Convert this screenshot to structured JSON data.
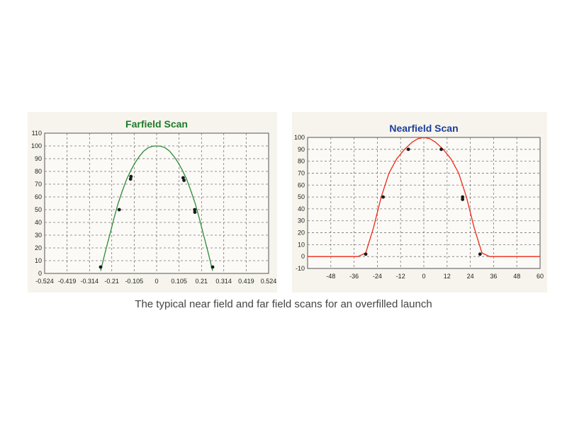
{
  "caption": "The typical near field and far field scans for an overfilled launch",
  "chart_data": [
    {
      "type": "line",
      "title": "Farfield Scan",
      "title_color": "#1e7a2a",
      "line_color": "#2e8b3a",
      "marker_color": "#1a1a1a",
      "xlim": [
        -0.524,
        0.524
      ],
      "ylim": [
        0,
        110
      ],
      "x_ticks": [
        -0.524,
        -0.419,
        -0.314,
        -0.21,
        -0.105,
        0,
        0.105,
        0.21,
        0.314,
        0.419,
        0.524
      ],
      "x_tick_labels": [
        "-0.524",
        "-0.419",
        "-0.314",
        "-0.21",
        "-0.105",
        "0",
        "0.105",
        "0.21",
        "0.314",
        "0.419",
        "0.524"
      ],
      "y_ticks": [
        0,
        10,
        20,
        30,
        40,
        50,
        60,
        70,
        80,
        90,
        100,
        110
      ],
      "grid": true,
      "series": [
        {
          "x": [
            -0.262,
            -0.24,
            -0.22,
            -0.2,
            -0.18,
            -0.16,
            -0.14,
            -0.12,
            -0.1,
            -0.08,
            -0.06,
            -0.04,
            -0.02,
            0,
            0.02,
            0.04,
            0.06,
            0.08,
            0.1,
            0.12,
            0.14,
            0.16,
            0.18,
            0.2,
            0.22,
            0.24,
            0.262
          ],
          "y": [
            2,
            17,
            30,
            43,
            55,
            65,
            74,
            81,
            87,
            92,
            96,
            98.5,
            99.7,
            100,
            99.7,
            98.5,
            96,
            92,
            87,
            81,
            74,
            65,
            55,
            43,
            30,
            17,
            2
          ]
        }
      ],
      "markers": [
        {
          "x": -0.262,
          "y": 5
        },
        {
          "x": -0.175,
          "y": 50
        },
        {
          "x": -0.122,
          "y": 74
        },
        {
          "x": -0.12,
          "y": 76
        },
        {
          "x": 0.124,
          "y": 75
        },
        {
          "x": 0.128,
          "y": 73
        },
        {
          "x": 0.178,
          "y": 50
        },
        {
          "x": 0.179,
          "y": 48
        },
        {
          "x": 0.262,
          "y": 5
        }
      ]
    },
    {
      "type": "line",
      "title": "Nearfield Scan",
      "title_color": "#1c3e9c",
      "line_color": "#ee2a1a",
      "marker_color": "#1a1a1a",
      "xlim": [
        -60,
        60
      ],
      "ylim": [
        -10,
        100
      ],
      "x_ticks": [
        -48,
        -36,
        -24,
        -12,
        0,
        12,
        24,
        36,
        48,
        60
      ],
      "x_tick_labels": [
        "-48",
        "-36",
        "-24",
        "-12",
        "0",
        "12",
        "24",
        "36",
        "48",
        "60"
      ],
      "y_ticks": [
        -10,
        0,
        10,
        20,
        30,
        40,
        50,
        60,
        70,
        80,
        90,
        100
      ],
      "grid": true,
      "series": [
        {
          "x": [
            -60,
            -34,
            -30,
            -26,
            -22,
            -18,
            -14,
            -10,
            -6,
            -3,
            0,
            3,
            6,
            10,
            14,
            18,
            22,
            26,
            30,
            34,
            60
          ],
          "y": [
            0,
            0,
            3,
            24,
            50,
            70,
            82,
            90,
            96,
            99,
            100,
            99,
            96,
            90,
            82,
            70,
            50,
            24,
            3,
            0,
            0
          ]
        }
      ],
      "markers": [
        {
          "x": -30,
          "y": 2
        },
        {
          "x": -21,
          "y": 50
        },
        {
          "x": -8,
          "y": 90
        },
        {
          "x": 9,
          "y": 90
        },
        {
          "x": 20,
          "y": 50
        },
        {
          "x": 20,
          "y": 48
        },
        {
          "x": 29,
          "y": 2
        }
      ]
    }
  ]
}
